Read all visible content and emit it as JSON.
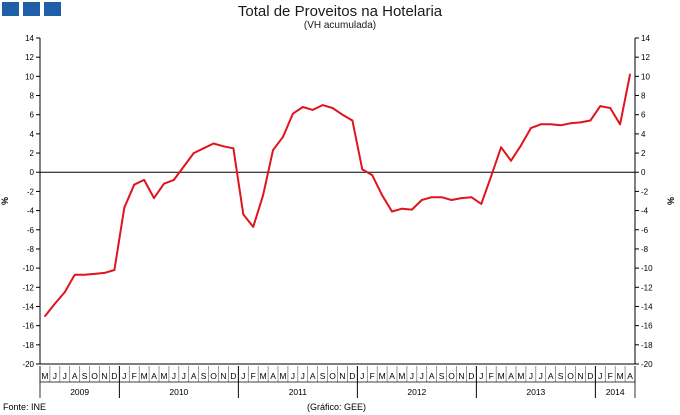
{
  "title": "Total de Proveitos na Hotelaria",
  "subtitle": "(VH acumulada)",
  "source": "Fonte: INE",
  "credit": "(Gráfico: GEE)",
  "logo_color": "#1f5fa8",
  "chart_data": {
    "type": "line",
    "title": "Total de Proveitos na Hotelaria",
    "subtitle": "(VH acumulada)",
    "ylabel": "%",
    "ylim": [
      -20,
      14
    ],
    "yticks": [
      -20,
      -18,
      -16,
      -14,
      -12,
      -10,
      -8,
      -6,
      -4,
      -2,
      0,
      2,
      4,
      6,
      8,
      10,
      12,
      14
    ],
    "grid": false,
    "line_color": "#e0141e",
    "month_labels": [
      "M",
      "J",
      "J",
      "A",
      "S",
      "O",
      "N",
      "D",
      "J",
      "F",
      "M",
      "A",
      "M",
      "J",
      "J",
      "A",
      "S",
      "O",
      "N",
      "D",
      "J",
      "F",
      "M",
      "A",
      "M",
      "J",
      "J",
      "A",
      "S",
      "O",
      "N",
      "D",
      "J",
      "F",
      "M",
      "A",
      "M",
      "J",
      "J",
      "A",
      "S",
      "O",
      "N",
      "D",
      "J",
      "F",
      "M",
      "A",
      "M",
      "J",
      "J",
      "A",
      "S",
      "O",
      "N",
      "D",
      "J",
      "F",
      "M",
      "A"
    ],
    "year_labels": [
      {
        "label": "2009",
        "first": 0,
        "last": 7
      },
      {
        "label": "2010",
        "first": 8,
        "last": 19
      },
      {
        "label": "2011",
        "first": 20,
        "last": 31
      },
      {
        "label": "2012",
        "first": 32,
        "last": 43
      },
      {
        "label": "2013",
        "first": 44,
        "last": 55
      },
      {
        "label": "2014",
        "first": 56,
        "last": 59
      }
    ],
    "series": [
      {
        "values": [
          -15.0,
          -13.7,
          -12.5,
          -10.7,
          -10.7,
          -10.6,
          -10.5,
          -10.2,
          -3.7,
          -1.3,
          -0.8,
          -2.7,
          -1.2,
          -0.8,
          0.6,
          2.0,
          2.5,
          3.0,
          2.7,
          2.5,
          -4.4,
          -5.7,
          -2.4,
          2.3,
          3.7,
          6.1,
          6.8,
          6.5,
          7.0,
          6.7,
          6.0,
          5.4,
          0.3,
          -0.3,
          -2.4,
          -4.1,
          -3.8,
          -3.9,
          -2.9,
          -2.6,
          -2.6,
          -2.9,
          -2.7,
          -2.6,
          -3.3,
          -0.4,
          2.6,
          1.2,
          2.8,
          4.6,
          5.0,
          5.0,
          4.9,
          5.1,
          5.2,
          5.4,
          6.9,
          6.7,
          5.0,
          10.2
        ]
      }
    ]
  }
}
